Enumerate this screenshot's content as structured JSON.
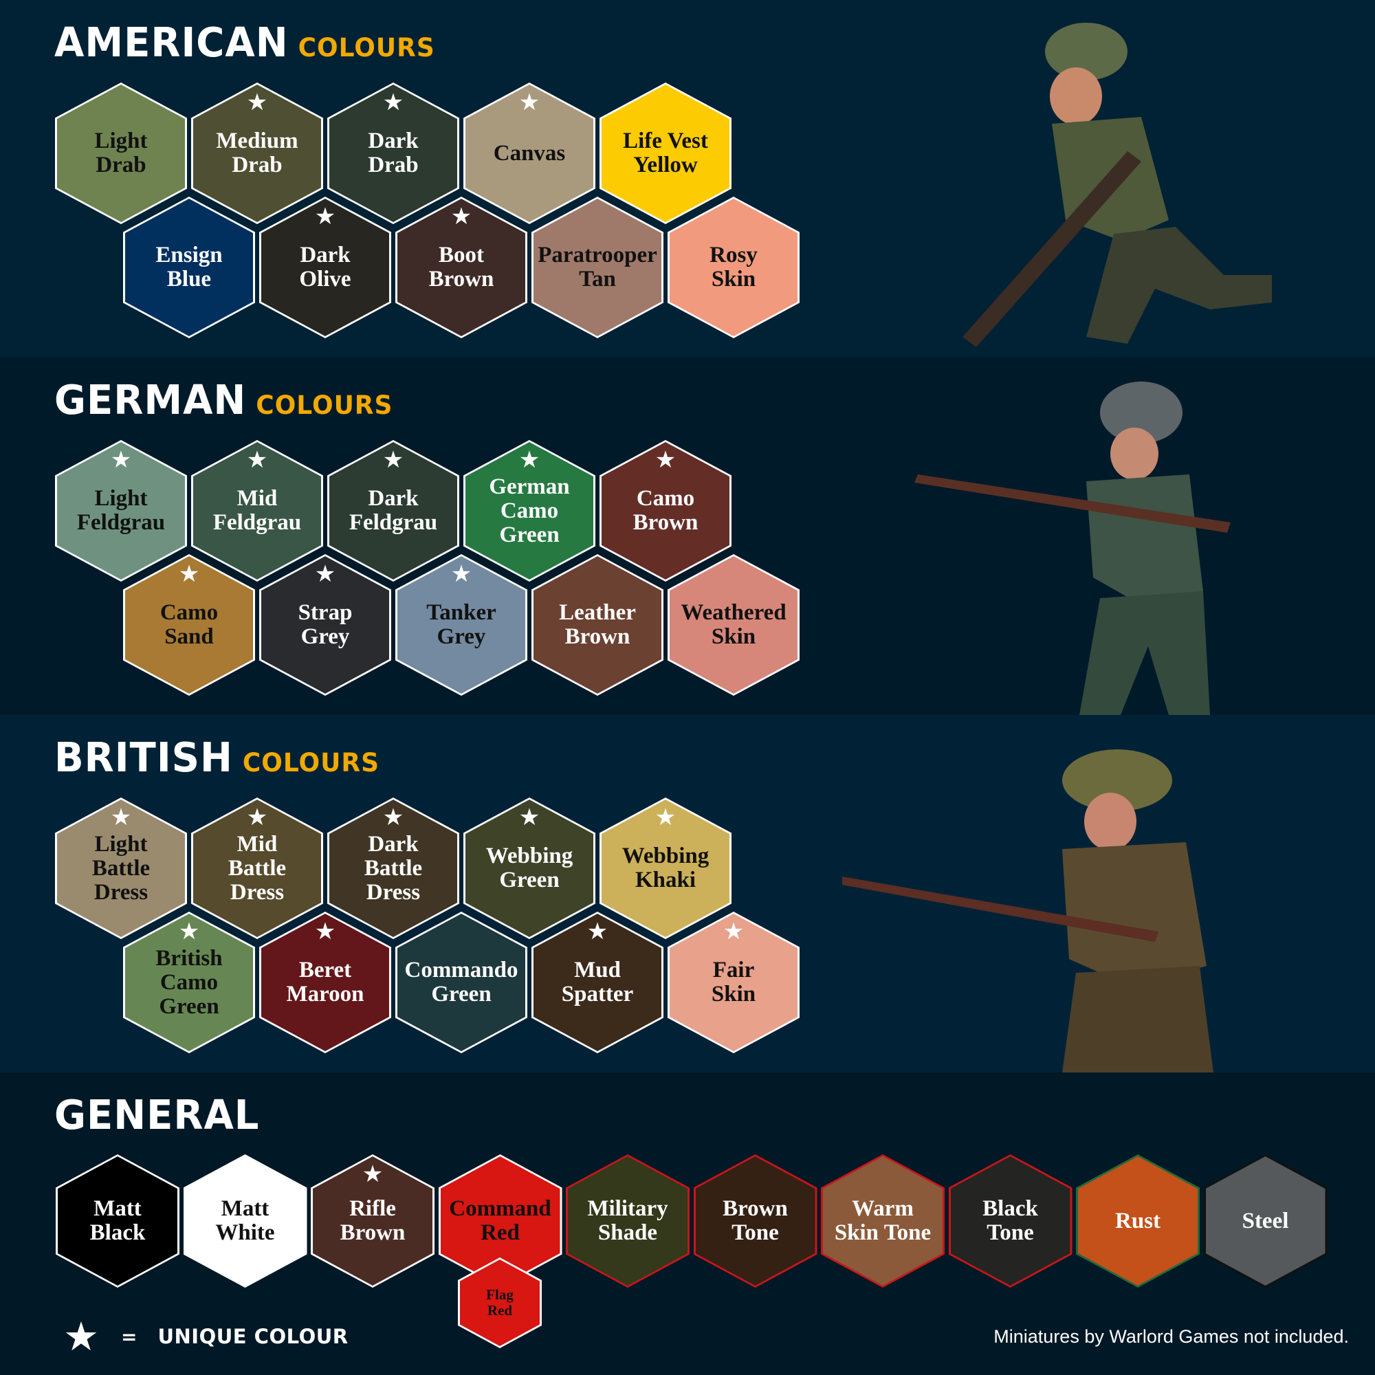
{
  "sections": [
    {
      "id": "american",
      "title": "AMERICAN",
      "subtitle": "COLOURS",
      "rows": [
        [
          {
            "name": "Light\nDrab",
            "color": "#6f8350",
            "text": "dark",
            "unique": false
          },
          {
            "name": "Medium\nDrab",
            "color": "#4f4f33",
            "text": "light",
            "unique": true
          },
          {
            "name": "Dark\nDrab",
            "color": "#2c3a2f",
            "text": "light",
            "unique": true
          },
          {
            "name": "Canvas",
            "color": "#a99a7e",
            "text": "dark",
            "unique": true
          },
          {
            "name": "Life Vest\nYellow",
            "color": "#fccb01",
            "text": "dark",
            "unique": false
          }
        ],
        [
          {
            "name": "Ensign\nBlue",
            "color": "#01305f",
            "text": "light",
            "unique": false
          },
          {
            "name": "Dark\nOlive",
            "color": "#282621",
            "text": "light",
            "unique": true
          },
          {
            "name": "Boot\nBrown",
            "color": "#3e2a26",
            "text": "light",
            "unique": true
          },
          {
            "name": "Paratrooper\nTan",
            "color": "#9f7a6a",
            "text": "dark",
            "unique": false
          },
          {
            "name": "Rosy\nSkin",
            "color": "#f19a7e",
            "text": "dark",
            "unique": false
          }
        ]
      ]
    },
    {
      "id": "german",
      "title": "GERMAN",
      "subtitle": "COLOURS",
      "rows": [
        [
          {
            "name": "Light\nFeldgrau",
            "color": "#6f9280",
            "text": "dark",
            "unique": true
          },
          {
            "name": "Mid\nFeldgrau",
            "color": "#3a5646",
            "text": "light",
            "unique": true
          },
          {
            "name": "Dark\nFeldgrau",
            "color": "#2c3c33",
            "text": "light",
            "unique": true
          },
          {
            "name": "German\nCamo\nGreen",
            "color": "#277942",
            "text": "light",
            "unique": true
          },
          {
            "name": "Camo\nBrown",
            "color": "#642e27",
            "text": "light",
            "unique": true
          }
        ],
        [
          {
            "name": "Camo\nSand",
            "color": "#a87a33",
            "text": "dark",
            "unique": true
          },
          {
            "name": "Strap\nGrey",
            "color": "#2a2b2f",
            "text": "light",
            "unique": true
          },
          {
            "name": "Tanker\nGrey",
            "color": "#738aa0",
            "text": "dark",
            "unique": true
          },
          {
            "name": "Leather\nBrown",
            "color": "#6b4132",
            "text": "light",
            "unique": false
          },
          {
            "name": "Weathered\nSkin",
            "color": "#d7877a",
            "text": "dark",
            "unique": false
          }
        ]
      ]
    },
    {
      "id": "british",
      "title": "BRITISH",
      "subtitle": "COLOURS",
      "rows": [
        [
          {
            "name": "Light\nBattle\nDress",
            "color": "#9a8b6e",
            "text": "dark",
            "unique": true
          },
          {
            "name": "Mid\nBattle\nDress",
            "color": "#574b2d",
            "text": "light",
            "unique": true
          },
          {
            "name": "Dark\nBattle\nDress",
            "color": "#413625",
            "text": "light",
            "unique": true
          },
          {
            "name": "Webbing\nGreen",
            "color": "#3f4429",
            "text": "light",
            "unique": true
          },
          {
            "name": "Webbing\nKhaki",
            "color": "#cdb05a",
            "text": "dark",
            "unique": true
          }
        ],
        [
          {
            "name": "British\nCamo\nGreen",
            "color": "#668753",
            "text": "dark",
            "unique": true
          },
          {
            "name": "Beret\nMaroon",
            "color": "#63171a",
            "text": "light",
            "unique": true
          },
          {
            "name": "Commando\nGreen",
            "color": "#1e393d",
            "text": "light",
            "unique": false
          },
          {
            "name": "Mud\nSpatter",
            "color": "#3c2a1b",
            "text": "light",
            "unique": true
          },
          {
            "name": "Fair\nSkin",
            "color": "#e8a18a",
            "text": "dark",
            "unique": true
          }
        ]
      ]
    }
  ],
  "general": {
    "title": "GENERAL",
    "items": [
      {
        "name": "Matt\nBlack",
        "color": "#000000",
        "border": "#ffffff",
        "text": "light",
        "unique": false
      },
      {
        "name": "Matt\nWhite",
        "color": "#ffffff",
        "border": "#ffffff",
        "text": "dark",
        "unique": false
      },
      {
        "name": "Rifle\nBrown",
        "color": "#4b2c24",
        "border": "#ffffff",
        "text": "light",
        "unique": true
      },
      {
        "name": "Command\nRed",
        "color": "#d81612",
        "border": "#ffffff",
        "text": "dark",
        "unique": false
      },
      {
        "name": "Military\nShade",
        "color": "#33391a",
        "border": "#c8161a",
        "text": "light",
        "unique": false
      },
      {
        "name": "Brown\nTone",
        "color": "#342114",
        "border": "#c8161a",
        "text": "light",
        "unique": false
      },
      {
        "name": "Warm\nSkin Tone",
        "color": "#8a5a3a",
        "border": "#c8161a",
        "text": "light",
        "unique": false
      },
      {
        "name": "Black\nTone",
        "color": "#242522",
        "border": "#c8161a",
        "text": "light",
        "unique": false
      },
      {
        "name": "Rust",
        "color": "#c4501a",
        "border": "#1e6a3a",
        "text": "light",
        "unique": false
      },
      {
        "name": "Steel",
        "color": "#55595c",
        "border": "#111111",
        "text": "light",
        "unique": false
      }
    ],
    "flag_red": {
      "name": "Flag\nRed",
      "color": "#d81612",
      "text": "dark"
    }
  },
  "legend": {
    "icon": "star-icon",
    "symbol": "★",
    "equals": "=",
    "label": "UNIQUE COLOUR"
  },
  "footer_note": "Miniatures by Warlord Games not included."
}
